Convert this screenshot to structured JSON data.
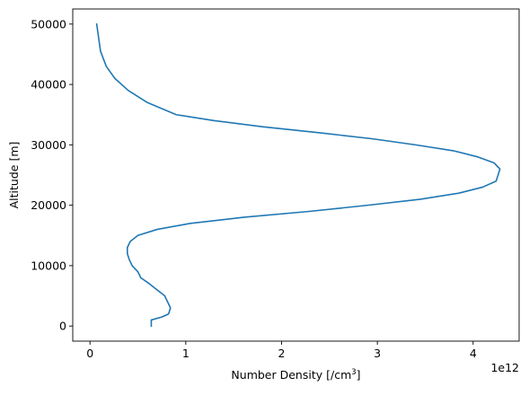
{
  "chart_data": {
    "type": "line",
    "title": "",
    "xlabel": "Number Density [/cm",
    "xlabel_superscript": "3",
    "xlabel_suffix": "]",
    "ylabel": "Altitude [m]",
    "x_offset_label": "1e12",
    "x_scale": 1000000000000.0,
    "xlim": [
      -0.18,
      4.48
    ],
    "ylim": [
      -2500,
      52500
    ],
    "xticks": [
      0,
      1,
      2,
      3,
      4
    ],
    "xtick_labels": [
      "0",
      "1",
      "2",
      "3",
      "4"
    ],
    "yticks": [
      0,
      10000,
      20000,
      30000,
      40000,
      50000
    ],
    "ytick_labels": [
      "0",
      "10000",
      "20000",
      "30000",
      "40000",
      "50000"
    ],
    "grid": false,
    "series": [
      {
        "color": "#1f77b4",
        "x": [
          0.64,
          0.64,
          0.75,
          0.82,
          0.84,
          0.81,
          0.78,
          0.7,
          0.62,
          0.53,
          0.5,
          0.44,
          0.41,
          0.39,
          0.39,
          0.42,
          0.5,
          0.7,
          1.05,
          1.6,
          2.3,
          2.9,
          3.45,
          3.85,
          4.1,
          4.24,
          4.28,
          4.22,
          4.05,
          3.8,
          3.4,
          2.95,
          2.4,
          1.8,
          1.3,
          0.9,
          0.6,
          0.4,
          0.26,
          0.17,
          0.11,
          0.07
        ],
        "y": [
          0,
          1000,
          1500,
          2000,
          3000,
          4000,
          5000,
          6000,
          7000,
          8000,
          9000,
          10000,
          11000,
          12000,
          13000,
          14000,
          15000,
          16000,
          17000,
          18000,
          19000,
          20000,
          21000,
          22000,
          23000,
          24000,
          26000,
          27000,
          28000,
          29000,
          30000,
          31000,
          32000,
          33000,
          34000,
          35000,
          37000,
          39000,
          41000,
          43000,
          45500,
          50000
        ]
      }
    ]
  }
}
